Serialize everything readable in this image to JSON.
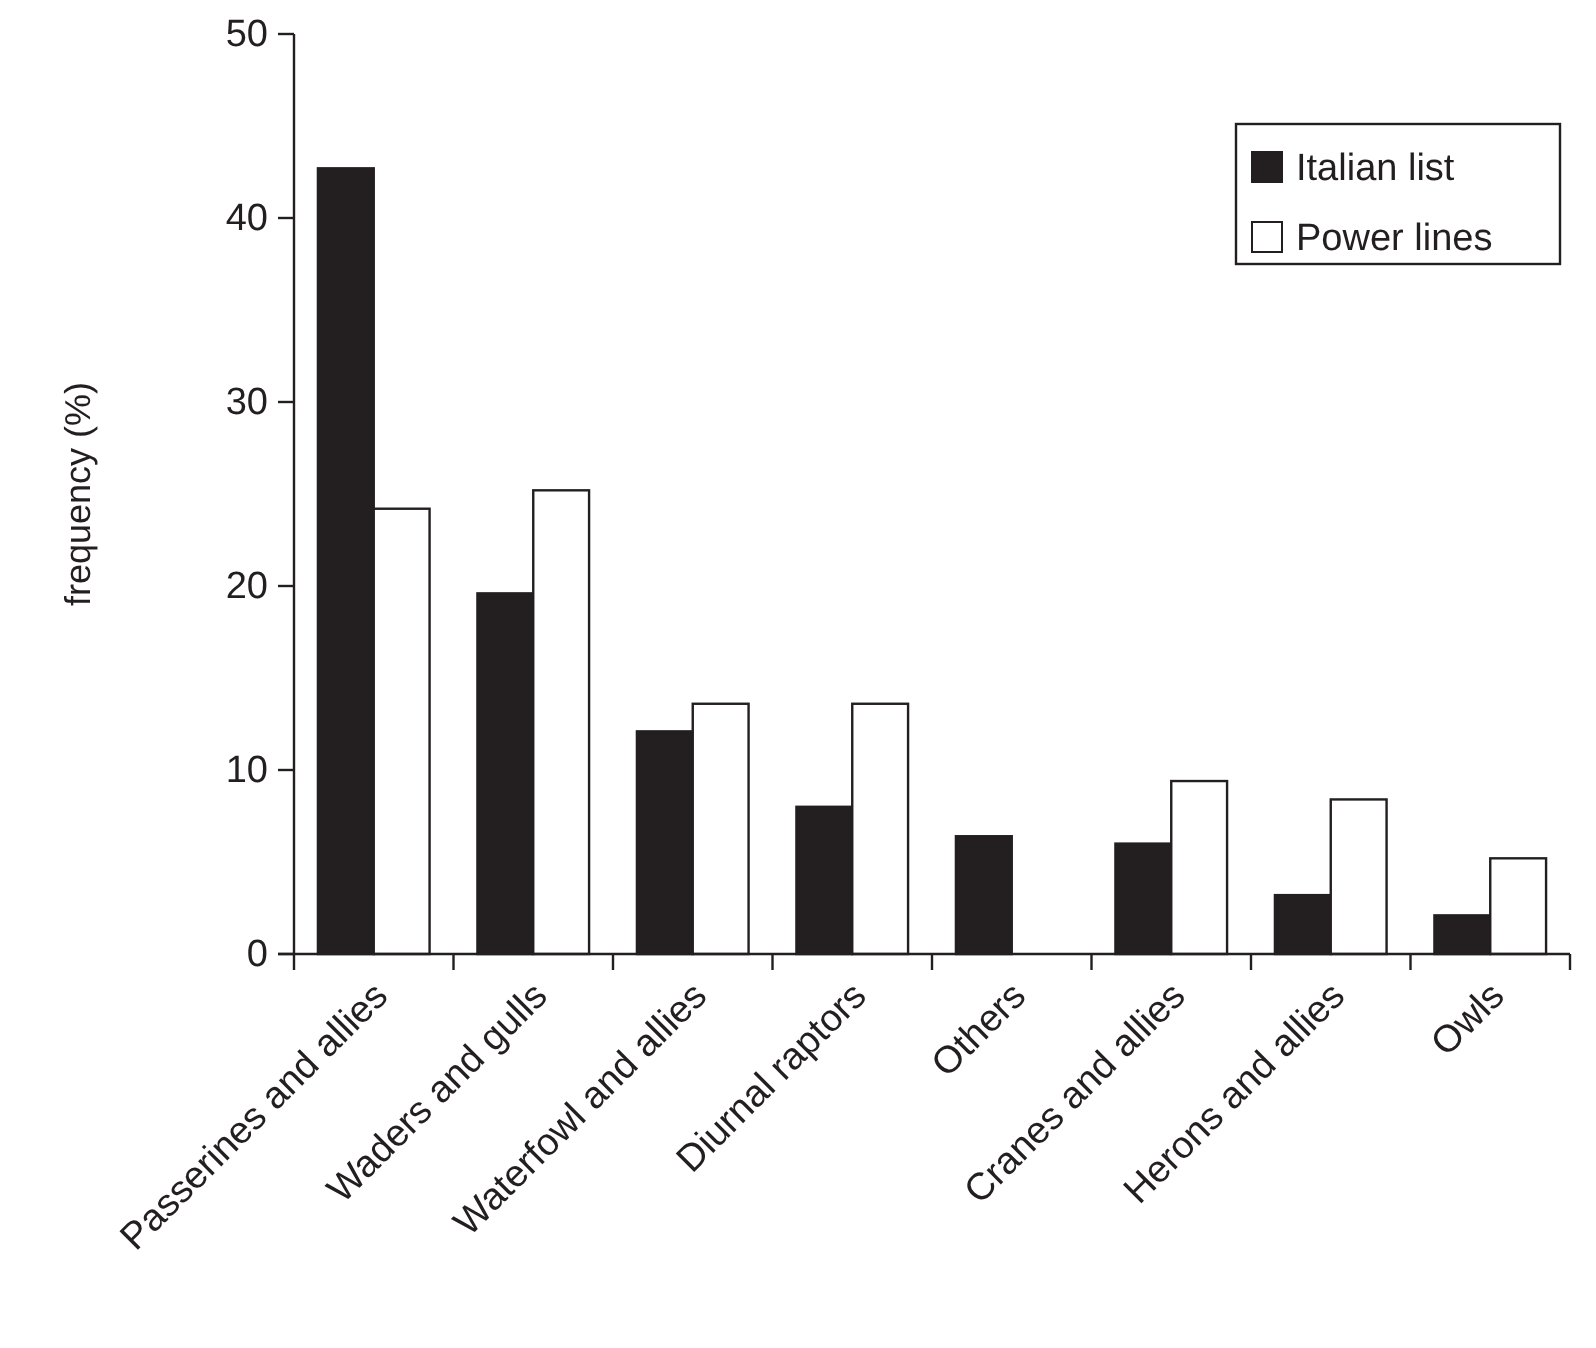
{
  "chart_data": {
    "type": "bar",
    "ylabel": "frequency (%)",
    "categories": [
      "Passerines and allies",
      "Waders and gulls",
      "Waterfowl and allies",
      "Diurnal raptors",
      "Others",
      "Cranes and allies",
      "Herons and allies",
      "Owls"
    ],
    "series": [
      {
        "name": "Italian list",
        "color": "#231f20",
        "values": [
          42.7,
          19.6,
          12.1,
          8.0,
          6.4,
          6.0,
          3.2,
          2.1
        ]
      },
      {
        "name": "Power lines",
        "color": "#ffffff",
        "values": [
          24.2,
          25.2,
          13.6,
          13.6,
          0,
          9.4,
          8.4,
          5.2
        ]
      }
    ],
    "ylim": [
      0,
      50
    ],
    "yticks": [
      0,
      10,
      20,
      30,
      40,
      50
    ],
    "grid": false,
    "legend": "top right"
  }
}
